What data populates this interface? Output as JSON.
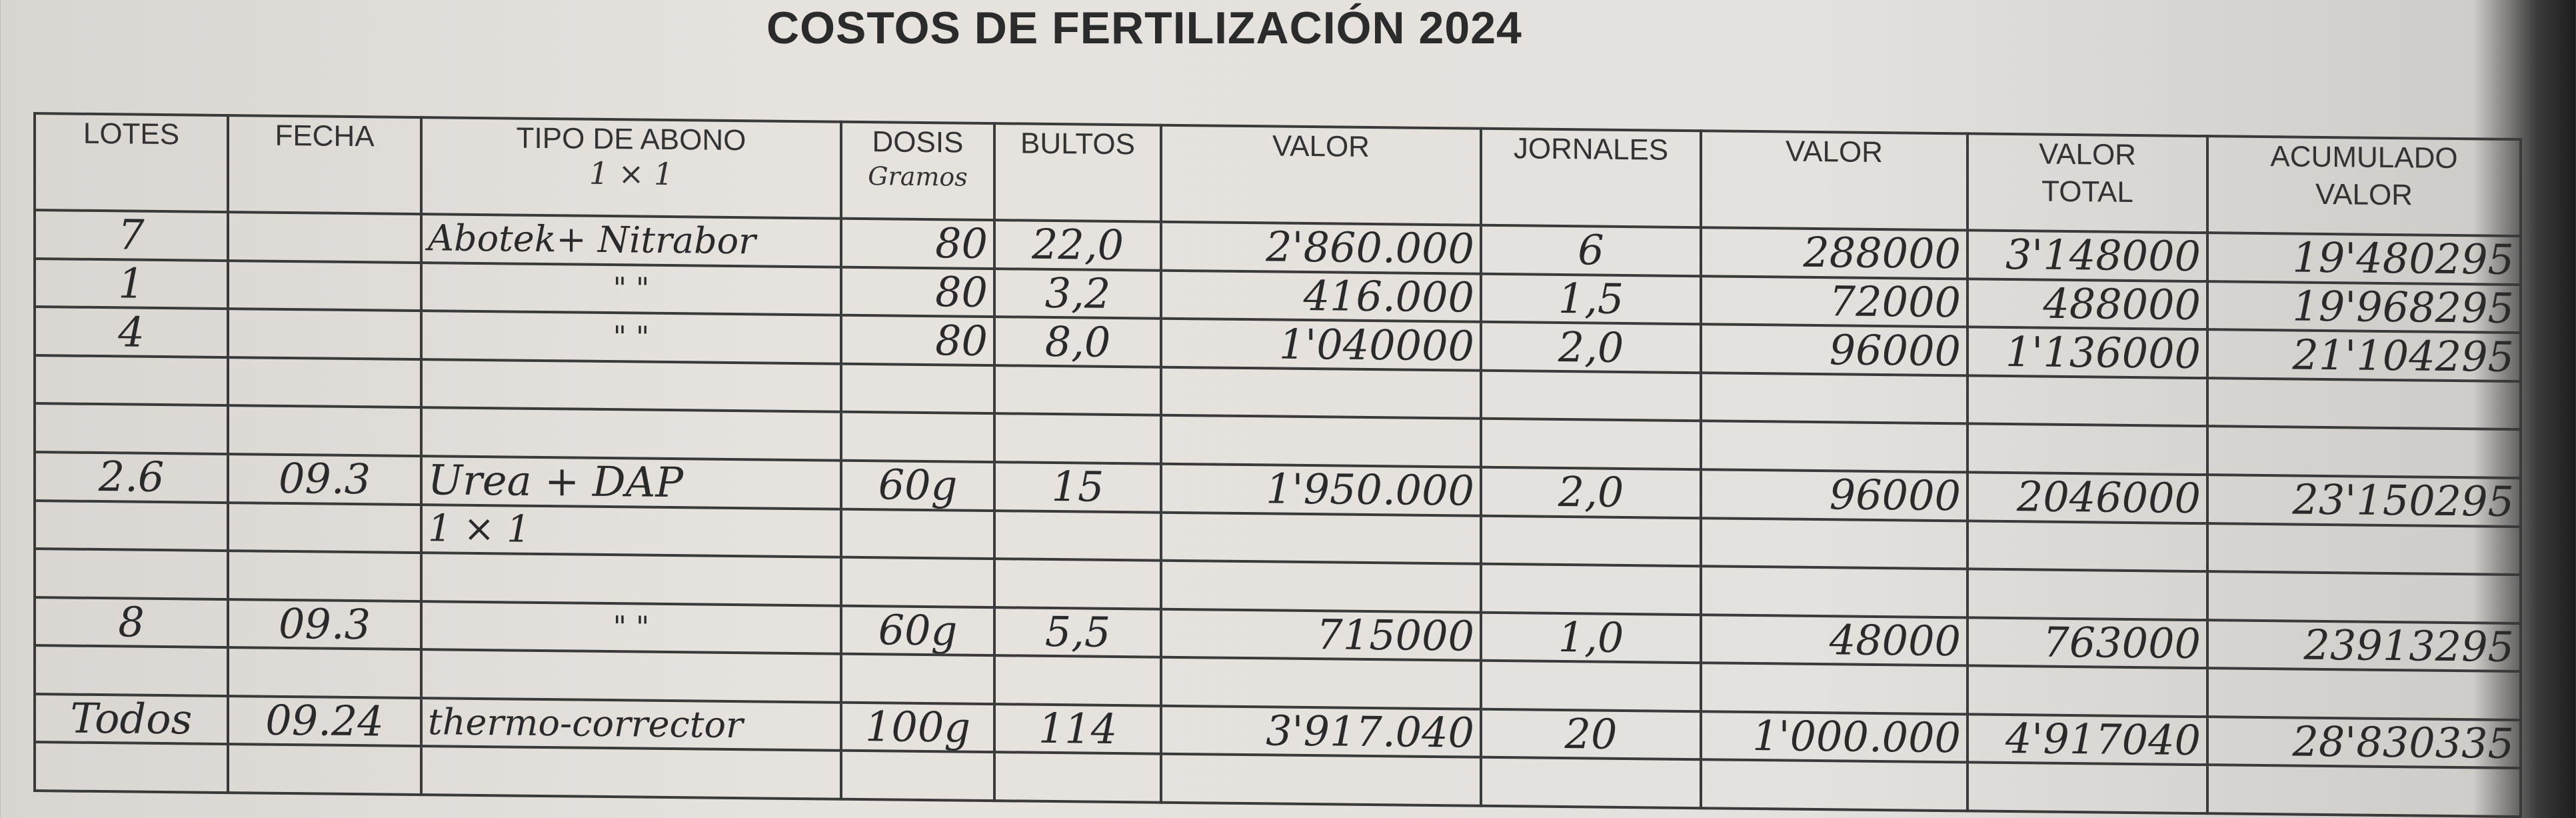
{
  "title": "COSTOS DE FERTILIZACIÓN 2024",
  "headers": {
    "lotes": "LOTES",
    "fecha": "FECHA",
    "tipo": "TIPO DE ABONO",
    "tipo_note": "1 × 1",
    "dosis": "DOSIS",
    "dosis_note": "Gramos",
    "bultos": "BULTOS",
    "valor": "VALOR",
    "jornales": "JORNALES",
    "valor2": "VALOR",
    "valor_total_1": "VALOR",
    "valor_total_2": "TOTAL",
    "acumulado_1": "ACUMULADO",
    "acumulado_2": "VALOR"
  },
  "rows": [
    {
      "lote": "7",
      "fecha": "",
      "tipo": "Abotek+ Nitrabor",
      "dosis": "80",
      "bultos": "22,0",
      "valor": "2'860.000",
      "jornales": "6",
      "valor2": "288000",
      "total": "3'148000",
      "acumulado": "19'480295"
    },
    {
      "lote": "1",
      "fecha": "",
      "tipo": "\"        \"",
      "dosis": "80",
      "bultos": "3,2",
      "valor": "416.000",
      "jornales": "1,5",
      "valor2": "72000",
      "total": "488000",
      "acumulado": "19'968295"
    },
    {
      "lote": "4",
      "fecha": "",
      "tipo": "\"        \"",
      "dosis": "80",
      "bultos": "8,0",
      "valor": "1'040000",
      "jornales": "2,0",
      "valor2": "96000",
      "total": "1'136000",
      "acumulado": "21'104295"
    },
    {
      "lote": "2.6",
      "fecha": "09.3",
      "tipo": "Urea + DAP",
      "dosis": "60g",
      "bultos": "15",
      "valor": "1'950.000",
      "jornales": "2,0",
      "valor2": "96000",
      "total": "2046000",
      "acumulado": "23'150295"
    },
    {
      "lote": "8",
      "fecha": "09.3",
      "tipo": "\"        \"",
      "dosis": "60g",
      "bultos": "5,5",
      "valor": "715000",
      "jornales": "1,0",
      "valor2": "48000",
      "total": "763000",
      "acumulado": "23913295"
    },
    {
      "lote": "Todos",
      "fecha": "09.24",
      "tipo": "thermo-corrector",
      "dosis": "100g",
      "bultos": "114",
      "valor": "3'917.040",
      "jornales": "20",
      "valor2": "1'000.000",
      "total": "4'917040",
      "acumulado": "28'830335"
    }
  ],
  "urea_note": "1 × 1"
}
